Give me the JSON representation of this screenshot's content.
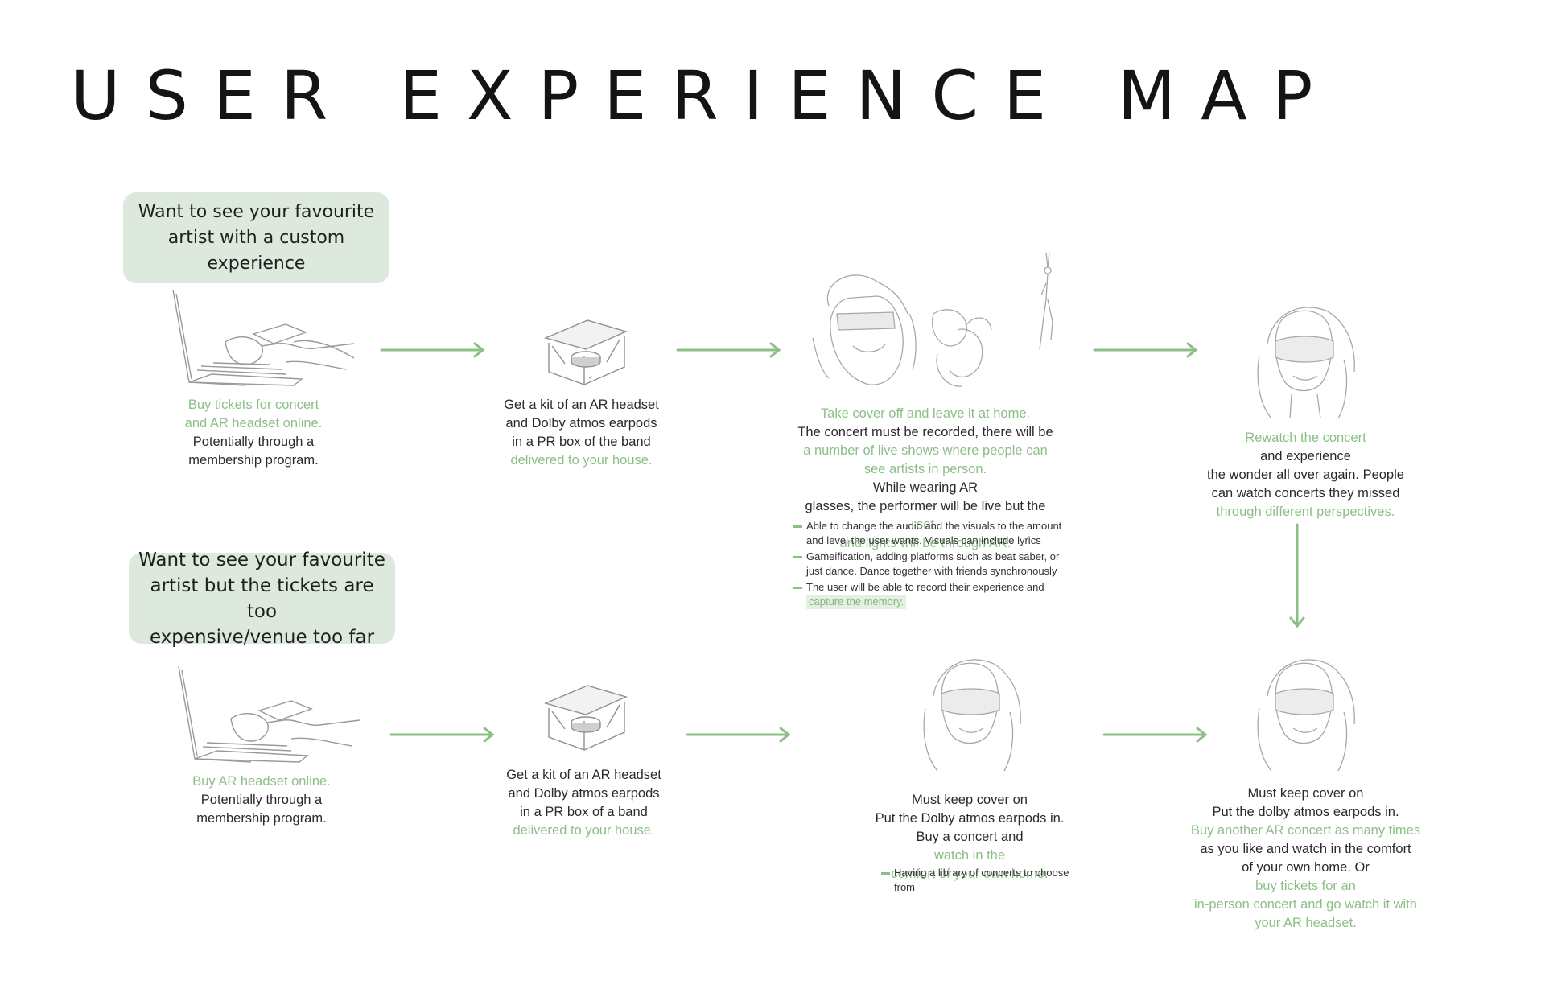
{
  "title": "USER EXPERIENCE MAP",
  "colors": {
    "accent_green": "#8cbf86",
    "bubble_bg": "#dde9dc",
    "text": "#2a2a2a"
  },
  "bubbles": {
    "top": [
      "Want to see your favourite",
      "artist with a custom",
      "experience"
    ],
    "bottom": [
      "Want to see your favourite",
      "artist but the tickets are too",
      "expensive/venue too far"
    ]
  },
  "top_row": {
    "step1": {
      "green": [
        "Buy tickets for concert",
        "and AR headset online."
      ],
      "plain": [
        "Potentially through a",
        "membership program."
      ]
    },
    "step2": {
      "plain": [
        "Get a kit of an AR headset",
        "and Dolby atmos earpods",
        "in a PR box of the band"
      ],
      "green": [
        "delivered to your house."
      ]
    },
    "step3": {
      "line1": "Take cover off and leave it at home.",
      "line2": "The concert must be recorded, there will be",
      "line3": "a number of live shows where people can",
      "line4_green": "see artists in person.",
      "line4_plain": " While wearing AR",
      "line5_plain": "glasses, the performer will be live but the ",
      "line5_green": "set",
      "line6": "and lights will be through AR.",
      "notes": {
        "n1": [
          "Able to change the audio and the visuals to the amount",
          "and level the user wants. Visuals can include lyrics"
        ],
        "n2": [
          "Gameification, adding platforms such as beat saber, or",
          "just dance. Dance together with friends synchronously"
        ],
        "n3": "The user will be able to record their experience and",
        "n3_highlight": "capture the memory."
      }
    },
    "step4": {
      "line1_green": "Rewatch the concert",
      "line1_plain": " and experience",
      "line2": "the wonder all over again. People",
      "line3": "can watch concerts they missed",
      "line4": "through different perspectives."
    }
  },
  "bottom_row": {
    "step1": {
      "green": [
        "Buy AR headset online."
      ],
      "plain": [
        "Potentially through a",
        "membership program."
      ]
    },
    "step2": {
      "plain": [
        "Get a kit of an AR headset",
        "and Dolby atmos earpods",
        "in a PR box of a band"
      ],
      "green": [
        "delivered to your house."
      ]
    },
    "step3": {
      "line1": "Must keep cover on",
      "line2": "Put the Dolby atmos earpods in.",
      "line3_plain": "Buy a concert and ",
      "line3_green": "watch in the",
      "line4": "comfort of your own home.",
      "note": [
        "Having a library of concerts to choose",
        "from"
      ]
    },
    "step4": {
      "line1": "Must keep cover on",
      "line2": "Put the dolby atmos earpods in.",
      "line3": "Buy another AR concert as many times",
      "line4": "as you like and watch in the comfort",
      "line5_plain": "of your own home. Or ",
      "line5_green": "buy tickets for an",
      "line6": "in-person concert and go watch it with",
      "line7": "your AR headset."
    }
  }
}
